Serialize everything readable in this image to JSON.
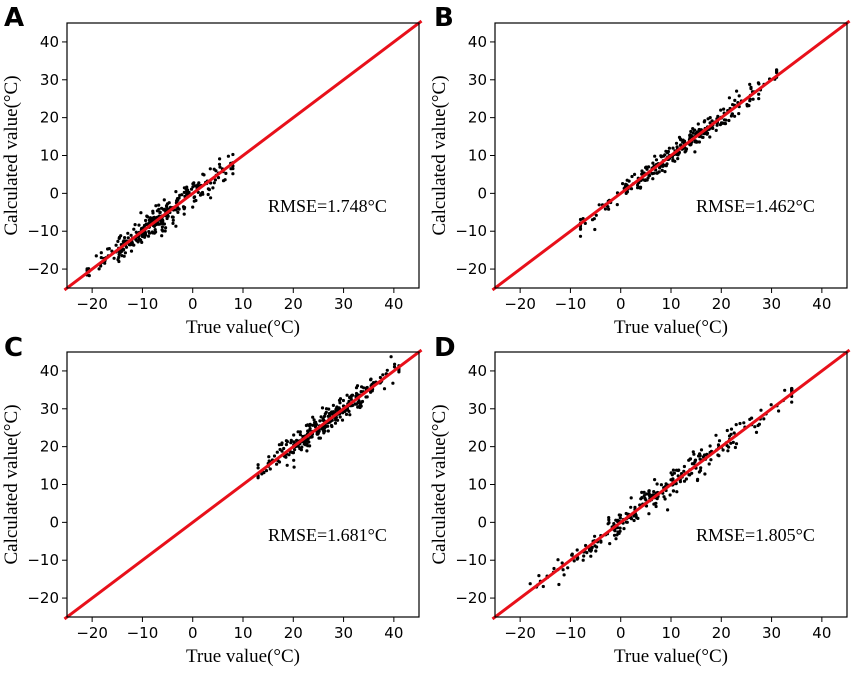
{
  "figure": {
    "caption_note": ""
  },
  "chart_data": [
    {
      "type": "scatter",
      "panel": "A",
      "xlabel": "True value(°C)",
      "ylabel": "Calculated value(°C)",
      "xlim": [
        -25,
        45
      ],
      "ylim": [
        -25,
        45
      ],
      "xticks": [
        -20,
        -10,
        0,
        10,
        20,
        30,
        40
      ],
      "yticks": [
        -20,
        -10,
        0,
        10,
        20,
        30,
        40
      ],
      "annotation": "RMSE=1.748°C",
      "reference_line": "y = x",
      "cluster": {
        "x_min": -21,
        "x_max": 8,
        "rmse": 1.748,
        "n": 300
      }
    },
    {
      "type": "scatter",
      "panel": "B",
      "xlabel": "True value(°C)",
      "ylabel": "Calculated value(°C)",
      "xlim": [
        -25,
        45
      ],
      "ylim": [
        -25,
        45
      ],
      "xticks": [
        -20,
        -10,
        0,
        10,
        20,
        30,
        40
      ],
      "yticks": [
        -20,
        -10,
        0,
        10,
        20,
        30,
        40
      ],
      "annotation": "RMSE=1.462°C",
      "reference_line": "y = x",
      "cluster": {
        "x_min": -8,
        "x_max": 31,
        "rmse": 1.462,
        "n": 300
      }
    },
    {
      "type": "scatter",
      "panel": "C",
      "xlabel": "True value(°C)",
      "ylabel": "Calculated value(°C)",
      "xlim": [
        -25,
        45
      ],
      "ylim": [
        -25,
        45
      ],
      "xticks": [
        -20,
        -10,
        0,
        10,
        20,
        30,
        40
      ],
      "yticks": [
        -20,
        -10,
        0,
        10,
        20,
        30,
        40
      ],
      "annotation": "RMSE=1.681°C",
      "reference_line": "y = x",
      "cluster": {
        "x_min": 13,
        "x_max": 41,
        "rmse": 1.681,
        "n": 300
      }
    },
    {
      "type": "scatter",
      "panel": "D",
      "xlabel": "True value(°C)",
      "ylabel": "Calculated value(°C)",
      "xlim": [
        -25,
        45
      ],
      "ylim": [
        -25,
        45
      ],
      "xticks": [
        -20,
        -10,
        0,
        10,
        20,
        30,
        40
      ],
      "yticks": [
        -20,
        -10,
        0,
        10,
        20,
        30,
        40
      ],
      "annotation": "RMSE=1.805°C",
      "reference_line": "y = x",
      "cluster": {
        "x_min": -18,
        "x_max": 34,
        "rmse": 1.805,
        "n": 280
      }
    }
  ],
  "colors": {
    "fit_line": "#e8101a",
    "points": "#000000",
    "frame": "#000000"
  }
}
